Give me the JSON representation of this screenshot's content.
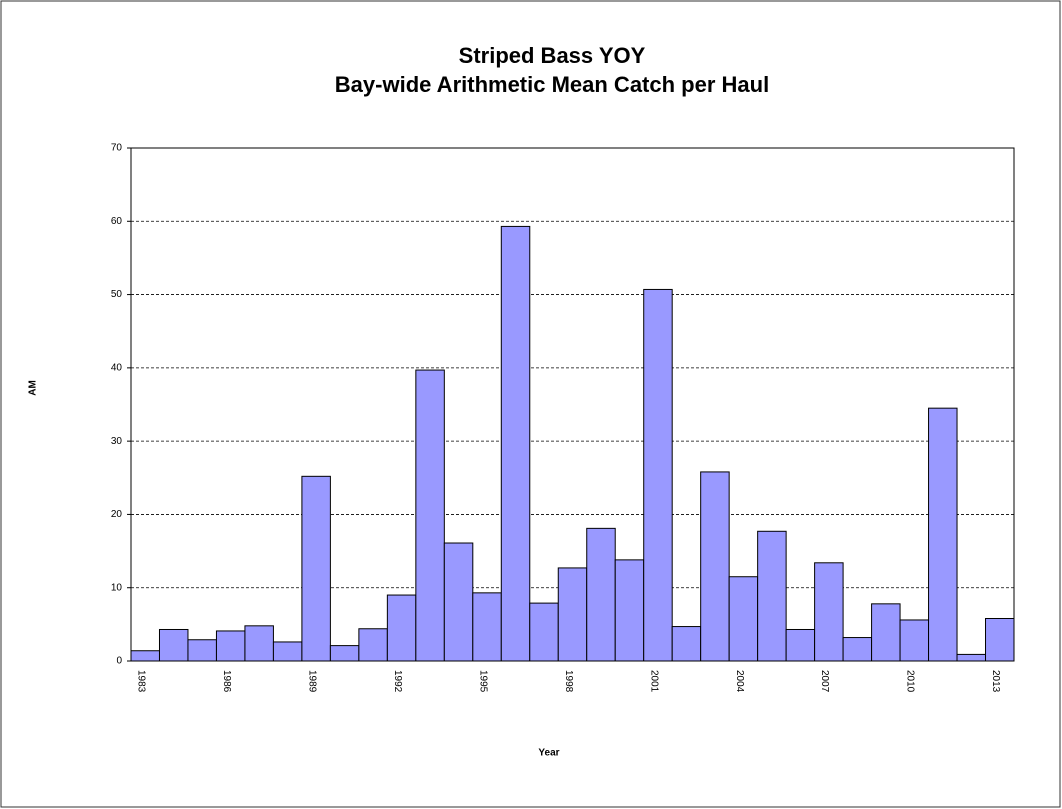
{
  "chart_data": {
    "type": "bar",
    "title": "Striped Bass YOY",
    "subtitle": "Bay-wide Arithmetic Mean Catch per Haul",
    "y_label": "AM",
    "x_label": "Year",
    "categories": [
      "1983",
      null,
      null,
      "1986",
      null,
      null,
      "1989",
      null,
      null,
      "1992",
      null,
      null,
      "1995",
      null,
      null,
      "1998",
      null,
      null,
      "2001",
      null,
      null,
      "2004",
      null,
      null,
      "2007",
      null,
      null,
      "2010",
      null,
      null,
      "2013"
    ],
    "values": [
      1.4,
      4.3,
      2.9,
      4.1,
      4.8,
      2.6,
      25.2,
      2.1,
      4.4,
      9.0,
      39.7,
      16.1,
      9.3,
      59.3,
      7.9,
      12.7,
      18.1,
      13.8,
      50.7,
      4.7,
      25.8,
      11.5,
      17.7,
      4.3,
      13.4,
      3.2,
      7.8,
      5.6,
      34.5,
      0.9,
      5.8
    ],
    "color": "#9999ff",
    "ylim": [
      0,
      70
    ],
    "yticks": [
      0,
      10,
      20,
      30,
      40,
      50,
      60,
      70
    ],
    "grid": true
  }
}
